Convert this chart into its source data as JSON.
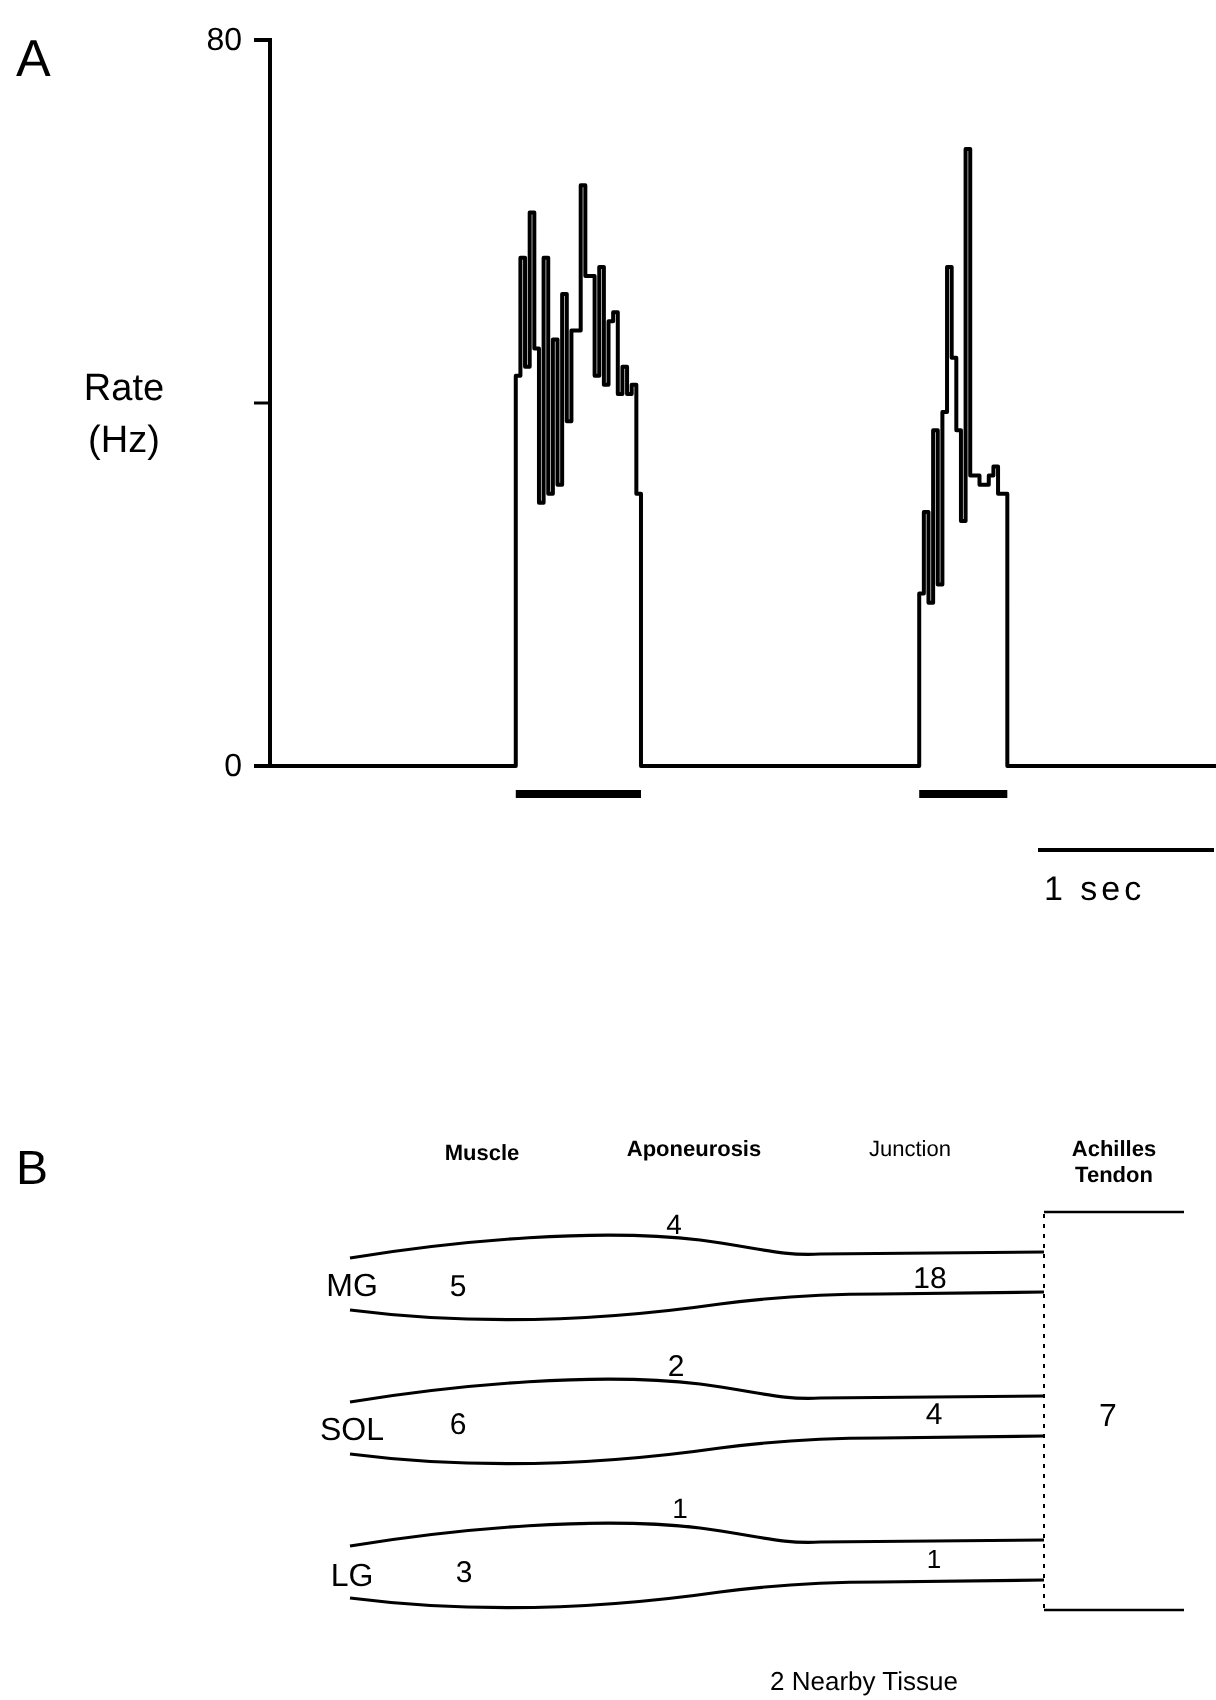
{
  "chart_data": [
    {
      "type": "step",
      "title": "A",
      "ylabel": "Rate (Hz)",
      "ylim": [
        0,
        80
      ],
      "yticks": [
        0,
        {
          "value": 40,
          "label": null
        },
        80
      ],
      "tick_labels": "y",
      "categories": [
        null,
        null,
        null,
        null,
        null,
        null,
        null,
        null,
        null,
        null,
        null,
        null,
        null,
        null,
        null,
        null,
        null,
        null,
        null,
        null,
        null,
        null,
        null,
        null,
        null,
        null,
        null,
        null,
        null,
        null,
        null,
        null,
        null,
        null,
        null,
        null,
        null,
        null,
        null,
        null,
        null,
        null,
        null,
        null,
        null,
        null,
        null,
        null,
        null,
        null,
        null,
        null,
        null,
        null,
        null,
        null,
        null,
        null,
        null,
        null,
        null,
        null,
        null,
        null,
        null,
        null,
        null,
        null,
        null,
        null,
        null,
        null,
        null,
        null,
        null,
        null,
        null,
        null,
        null,
        null,
        null,
        null,
        null,
        null,
        null,
        null,
        null,
        null,
        null,
        null,
        null,
        null,
        null,
        null,
        null,
        null,
        null,
        null,
        null,
        null,
        null,
        null,
        null,
        null,
        null,
        null,
        null,
        null,
        null,
        null,
        null,
        null,
        null,
        null,
        null,
        null,
        null,
        null,
        null,
        null,
        null,
        null,
        null,
        null,
        null,
        null,
        null,
        null,
        null,
        null,
        null,
        null,
        null,
        null,
        null,
        null,
        null,
        null,
        null,
        null,
        null,
        null,
        null,
        null,
        null,
        null,
        null,
        null,
        null,
        null,
        null,
        null,
        null,
        null,
        null,
        null,
        null,
        null,
        null,
        null,
        null,
        null,
        null,
        null,
        null,
        null,
        null,
        null,
        null,
        null,
        null,
        null,
        null,
        null,
        null,
        null,
        null,
        null,
        null,
        null,
        null,
        null,
        null,
        null,
        null,
        null,
        null,
        null,
        null,
        null,
        null,
        null,
        null,
        null,
        null,
        null,
        null,
        null,
        null,
        null,
        null,
        null,
        null,
        null,
        null
      ],
      "series": [
        {
          "color": "#000000",
          "values": [
            0,
            0,
            0,
            0,
            0,
            0,
            0,
            0,
            0,
            0,
            0,
            0,
            0,
            0,
            0,
            0,
            0,
            0,
            0,
            0,
            0,
            0,
            0,
            0,
            0,
            0,
            0,
            0,
            0,
            0,
            0,
            0,
            0,
            0,
            0,
            0,
            0,
            0,
            0,
            0,
            0,
            0,
            0,
            0,
            0,
            0,
            0,
            0,
            0,
            0,
            0,
            0,
            0,
            43,
            56,
            44,
            61,
            46,
            29,
            56,
            30,
            47,
            31,
            52,
            38,
            48,
            48,
            64,
            54,
            54,
            43,
            55,
            42,
            49,
            50,
            41,
            44,
            41,
            42,
            30,
            0,
            0,
            0,
            0,
            0,
            0,
            0,
            0,
            0,
            0,
            0,
            0,
            0,
            0,
            0,
            0,
            0,
            0,
            0,
            0,
            0,
            0,
            0,
            0,
            0,
            0,
            0,
            0,
            0,
            0,
            0,
            0,
            0,
            0,
            0,
            0,
            0,
            0,
            0,
            0,
            0,
            0,
            0,
            0,
            0,
            0,
            0,
            0,
            0,
            0,
            0,
            0,
            0,
            0,
            0,
            0,
            0,
            0,
            0,
            0,
            19,
            28,
            18,
            37,
            20,
            39,
            55,
            45,
            37,
            27,
            68,
            32,
            32,
            31,
            31,
            32,
            33,
            30,
            30,
            0,
            0,
            0,
            0,
            0,
            0,
            0,
            0,
            0,
            0,
            0,
            0,
            0,
            0,
            0,
            0,
            0,
            0,
            0,
            0,
            0,
            0,
            0,
            0,
            0,
            0,
            0,
            0,
            0,
            0,
            0,
            0,
            0,
            0,
            0,
            0,
            0,
            0,
            0,
            0,
            0,
            0,
            0,
            0,
            0,
            0
          ]
        }
      ],
      "annotations": [
        "1 sec"
      ]
    },
    {
      "type": "other",
      "title": "B",
      "annotations": [
        "Muscle",
        "Aponeurosis",
        "Junction",
        "Achilles Tendon",
        "MG",
        "SOL",
        "LG",
        "4",
        "5",
        "18",
        "2",
        "6",
        "4",
        "1",
        "3",
        "1",
        "7",
        "2 Nearby Tissue"
      ]
    }
  ]
}
